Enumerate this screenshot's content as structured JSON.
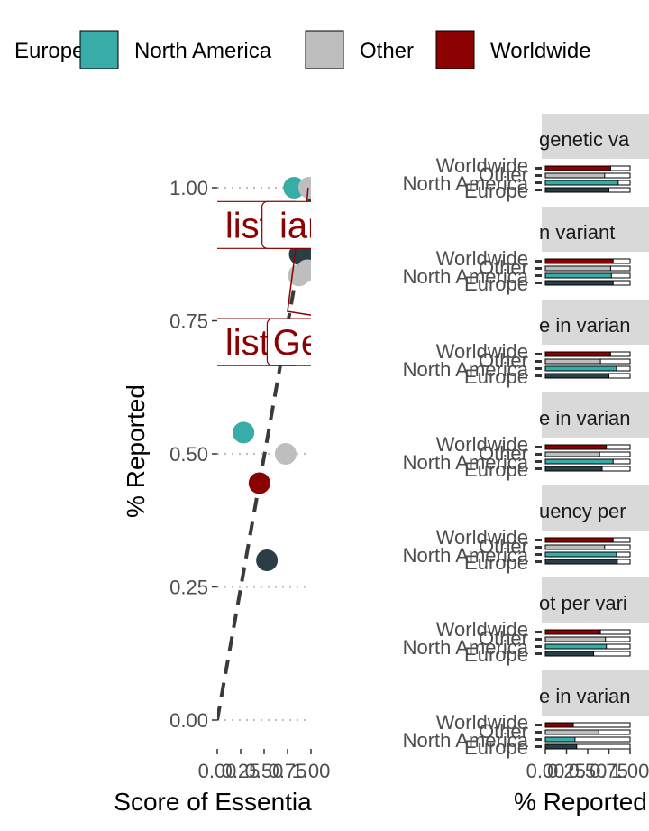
{
  "legend": {
    "placement": "top",
    "items": [
      {
        "label": "Europe",
        "color": "#2b3e45"
      },
      {
        "label": "North America",
        "color": "#38aca6"
      },
      {
        "label": "Other",
        "color": "#bebebe"
      },
      {
        "label": "Worldwide",
        "color": "#8b0000"
      }
    ]
  },
  "chart_data": [
    {
      "type": "scatter",
      "xlabel": "Score of Essentia",
      "ylabel": "% Reported",
      "xlim": [
        0,
        1
      ],
      "ylim": [
        -0.05,
        1.05
      ],
      "x_ticks": [
        "0.00",
        "0.25",
        "0.50",
        "0.75",
        "1.00"
      ],
      "y_ticks": [
        "0.00",
        "0.25",
        "0.50",
        "0.75",
        "1.00"
      ],
      "y_tick_values": [
        0,
        0.25,
        0.5,
        0.75,
        1
      ],
      "grid": "dotted horizontal",
      "trend_line": {
        "style": "dashed",
        "points": [
          [
            0,
            0
          ],
          [
            1.06,
            1.05
          ]
        ]
      },
      "series": [
        {
          "name": "Europe",
          "color": "#2b3e45",
          "points": [
            [
              0.53,
              0.3
            ],
            [
              0.88,
              0.875
            ],
            [
              0.92,
              0.88
            ]
          ]
        },
        {
          "name": "North America",
          "color": "#38aca6",
          "points": [
            [
              0.28,
              0.54
            ],
            [
              0.82,
              1.0
            ]
          ]
        },
        {
          "name": "Other",
          "color": "#bebebe",
          "points": [
            [
              0.73,
              0.5
            ],
            [
              0.87,
              0.835
            ],
            [
              0.96,
              0.845
            ],
            [
              0.98,
              1.0
            ]
          ]
        },
        {
          "name": "Worldwide",
          "color": "#8b0000",
          "points": [
            [
              0.45,
              0.445
            ]
          ]
        }
      ],
      "annotations": [
        {
          "text": "list",
          "x": 0.32,
          "y": 0.93
        },
        {
          "text": "ian",
          "x": 0.92,
          "y": 0.93
        },
        {
          "text": "list",
          "x": 0.32,
          "y": 0.71
        },
        {
          "text": "Ge",
          "x": 0.85,
          "y": 0.71
        }
      ]
    },
    {
      "type": "bar",
      "orientation": "horizontal",
      "stacked": true,
      "xlabel": "% Reported",
      "x_ticks": [
        "0.00",
        "0.25",
        "0.50",
        "0.75",
        "1.00"
      ],
      "categories": [
        "Worldwide",
        "Other",
        "North America",
        "Europe"
      ],
      "panels": [
        {
          "title": "genetic va",
          "values": [
            0.77,
            0.7,
            0.86,
            0.75
          ]
        },
        {
          "title": "n variant",
          "values": [
            0.8,
            0.77,
            0.78,
            0.8
          ]
        },
        {
          "title": "e in varian",
          "values": [
            0.77,
            0.65,
            0.84,
            0.75
          ]
        },
        {
          "title": "e in varian",
          "values": [
            0.72,
            0.64,
            0.8,
            0.67
          ]
        },
        {
          "title": "uency per",
          "values": [
            0.8,
            0.7,
            0.84,
            0.85
          ]
        },
        {
          "title": "ot per vari",
          "values": [
            0.65,
            0.71,
            0.72,
            0.57
          ]
        },
        {
          "title": "e in varian",
          "values": [
            0.33,
            0.63,
            0.35,
            0.37
          ]
        }
      ]
    }
  ]
}
